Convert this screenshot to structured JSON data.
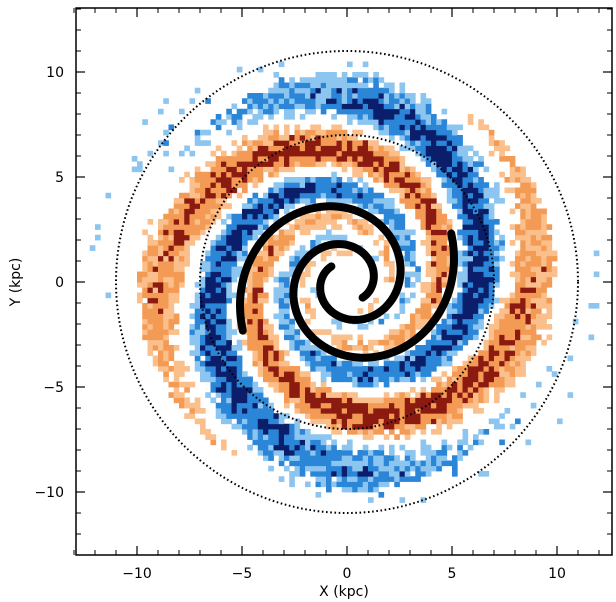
{
  "chart_data": {
    "type": "heatmap",
    "xlabel": "X (kpc)",
    "ylabel": "Y (kpc)",
    "xlim": [
      -13,
      13
    ],
    "ylim": [
      -13,
      13
    ],
    "x_ticks": [
      -10,
      -5,
      0,
      5,
      10
    ],
    "y_ticks": [
      -10,
      -5,
      0,
      5,
      10
    ],
    "x_tick_labels": [
      "−10",
      "−5",
      "0",
      "5",
      "10"
    ],
    "y_tick_labels": [
      "−10",
      "−5",
      "0",
      "5",
      "10"
    ],
    "grid": false,
    "colormap": {
      "positive": "#f08a3c",
      "positive_strong": "#8b1a10",
      "negative": "#2c86d8",
      "negative_strong": "#0b1e6b"
    },
    "reference_circles_kpc": [
      7,
      11
    ],
    "spiral_arms": [
      {
        "start_angle_deg": 135,
        "r0": 5,
        "tightness": 0.22,
        "length_deg": 430
      },
      {
        "start_angle_deg": -45,
        "r0": 5,
        "tightness": 0.22,
        "length_deg": 430
      }
    ],
    "arm_line_color": "#000000"
  }
}
